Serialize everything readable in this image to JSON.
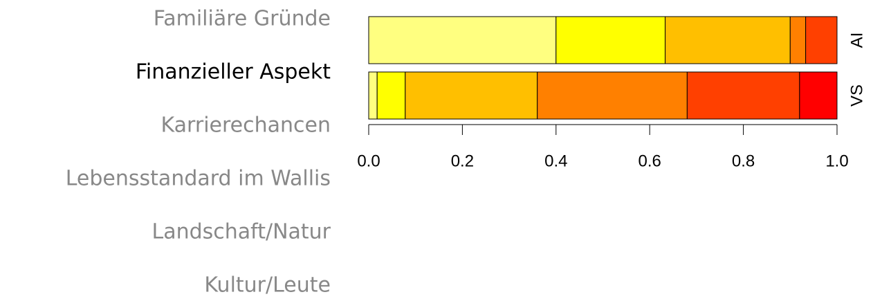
{
  "chart_data": {
    "type": "stacked_bar",
    "orientation": "horizontal",
    "categories": [
      "AI",
      "VS"
    ],
    "series": [
      {
        "name": "Familiäre Gründe",
        "color": "#FFFF80",
        "label_color": "#888888",
        "values": [
          0.4,
          0.018
        ]
      },
      {
        "name": "Finanzieller Aspekt",
        "color": "#FFFF00",
        "label_color": "#000000",
        "values": [
          0.233,
          0.06
        ]
      },
      {
        "name": "Karrierechancen",
        "color": "#FFBF00",
        "label_color": "#888888",
        "values": [
          0.267,
          0.282
        ]
      },
      {
        "name": "Lebensstandard im Wallis",
        "color": "#FF8000",
        "label_color": "#888888",
        "values": [
          0.033,
          0.32
        ]
      },
      {
        "name": "Landschaft/Natur",
        "color": "#FF4000",
        "label_color": "#888888",
        "values": [
          0.067,
          0.24
        ]
      },
      {
        "name": "Kultur/Leute",
        "color": "#FF0000",
        "label_color": "#888888",
        "values": [
          0,
          0.08
        ]
      }
    ],
    "xlim": [
      0,
      1
    ],
    "xticks": [
      {
        "value": 0,
        "label": "0.0"
      },
      0.2,
      0.4,
      0.6,
      0.8,
      {
        "value": 1,
        "label": "1.0"
      }
    ]
  }
}
